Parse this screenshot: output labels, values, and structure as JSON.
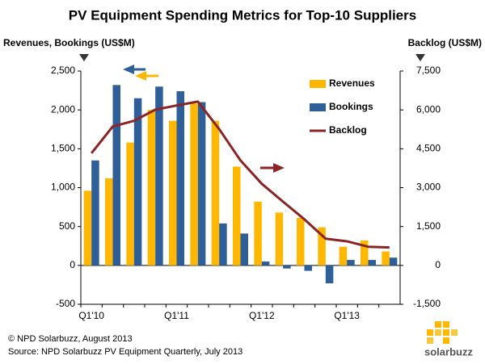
{
  "chart_data": {
    "type": "bar_line",
    "title": "PV Equipment Spending Metrics for Top-10 Suppliers",
    "y_label": "Revenues, Bookings (US$M)",
    "y2_label": "Backlog (US$M)",
    "categories": [
      "Q1'10",
      null,
      null,
      null,
      "Q1'11",
      null,
      null,
      null,
      "Q1'12",
      null,
      null,
      null,
      "Q1'13",
      null,
      null
    ],
    "series": [
      {
        "name": "Revenues",
        "color": "#ffb700",
        "type": "bar",
        "values": [
          960,
          1120,
          1580,
          2000,
          1860,
          2080,
          1860,
          1270,
          820,
          680,
          610,
          490,
          240,
          320,
          180
        ]
      },
      {
        "name": "Bookings",
        "color": "#2e5f99",
        "type": "bar",
        "values": [
          1350,
          2320,
          2150,
          2300,
          2240,
          2100,
          540,
          410,
          50,
          -40,
          -70,
          -230,
          70,
          70,
          100
        ]
      },
      {
        "name": "Backlog",
        "color": "#8b2525",
        "type": "line",
        "axis": "y2",
        "values": [
          4330,
          5360,
          5580,
          6010,
          6170,
          6320,
          5260,
          4050,
          3150,
          2460,
          1780,
          1030,
          930,
          720,
          690
        ]
      }
    ],
    "ylim": [
      -500,
      2500
    ],
    "yticks": [
      {
        "value": -500,
        "label": "-500"
      },
      0,
      500,
      {
        "value": 1000,
        "label": "1,000"
      },
      {
        "value": 1500,
        "label": "1,500"
      },
      {
        "value": 2000,
        "label": "2,000"
      },
      {
        "value": 2500,
        "label": "2,500"
      }
    ],
    "y2lim": [
      -1500,
      7500
    ],
    "y2ticks": [
      {
        "value": -1500,
        "label": "-1,500"
      },
      0,
      {
        "value": 1500,
        "label": "1,500"
      },
      {
        "value": 3000,
        "label": "3,000"
      },
      {
        "value": 4500,
        "label": "4,500"
      },
      {
        "value": 6000,
        "label": "6,000"
      },
      {
        "value": 7500,
        "label": "7,500"
      }
    ],
    "grid": false,
    "footnotes": [
      "© NPD Solarbuzz, August 2013",
      "Source: NPD Solarbuzz PV Equipment Quarterly, July 2013"
    ],
    "logo": "solarbuzz"
  }
}
